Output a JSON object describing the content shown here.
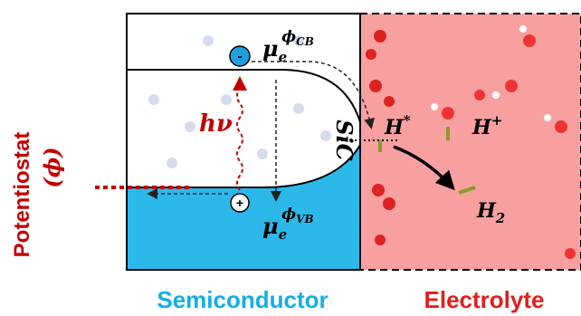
{
  "potentiostat": {
    "line1": "Potentiostat",
    "line2": "(ϕ)"
  },
  "photon": "hν",
  "electron": "-",
  "hole": "+",
  "mu_cb": {
    "base": "μ",
    "sub": "e",
    "sup": "ϕ",
    "supsub": "CB"
  },
  "mu_vb": {
    "base": "μ",
    "sub": "e",
    "sup": "ϕ",
    "supsub": "VB"
  },
  "material": "SiC",
  "h_star": {
    "base": "H",
    "sup": "*"
  },
  "h_plus": {
    "base": "H",
    "sup": "+"
  },
  "h2": {
    "base": "H",
    "sub": "2"
  },
  "labels": {
    "semiconductor": "Semiconductor",
    "electrolyte": "Electrolyte"
  }
}
